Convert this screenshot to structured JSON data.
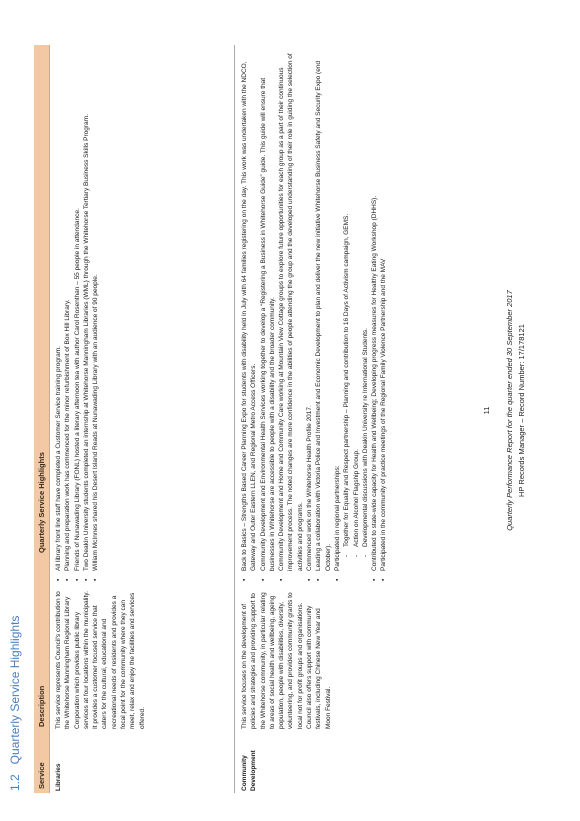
{
  "heading": {
    "number": "1.2",
    "title": "Quarterly Service Highlights"
  },
  "table": {
    "headers": {
      "service": "Service",
      "description": "Description",
      "highlights": "Quarterly Service Highlights"
    },
    "rows": [
      {
        "service": "Libraries",
        "description": "This service represents Council's contribution to the Whitehorse Manningham Regional Library Corporation which provides public library services at four locations within the municipality. It provides a customer focused service that caters for the cultural, educational and recreational needs of residents and provides a focal point for the community where they can meet, relax and enjoy the facilities and services offered.",
        "highlights": [
          {
            "text": "All library front line staff have completed a Customer Service training program.",
            "sub": false
          },
          {
            "text": "Planning and preparation work has commenced for the minor refurbishment of Box Hill Library.",
            "sub": false
          },
          {
            "text": "Friends of Nunawading Library (FONL) hosted a literary afternoon tea with author Carol Rosenthan – 55 people in attendance.",
            "sub": false
          },
          {
            "text": "Two Deakin University students completed an internship at Whitehorse Manningham Libraries (WML) through the Whitehorse Tertiary Business Skills Program.",
            "sub": false
          },
          {
            "text": "William McInnes shared his Desert Island Reads at Nunawading Library with an audience of 90 people.",
            "sub": false
          }
        ]
      },
      {
        "service": "Community Development",
        "description": "This service focuses on the development of policies and strategies and providing support to the Whitehorse community, in particular relating to areas of social health and wellbeing, ageing population, people with disabilities, diversity, volunteering, and provides community grants to local not for profit groups and organisations. Council also offers support with community festivals, including Chinese New Year and Moon Festival.",
        "highlights": [
          {
            "text": "Back to Basics – Strengths Based Career Planning Expo for students with disability held in July with 64 families registering on the day. This work was undertaken with the NDCO, Gateway and Outer Eastern LLEN, and Regional Metro Access Officers.",
            "sub": false
          },
          {
            "text": "Community Development and Environmental Health Services working together to develop a “Registering a Business in Whitehorse Guide” guide. This guide will ensure that businesses in Whitehorse are accessible to people with a disability and the broader community.",
            "sub": false
          },
          {
            "text": "Community Development and Home and Community Care working at Mountain View Cottage groups to explore future opportunities for each group as a part of their continuous improvement process. The noted changes are more confidence in the abilities of people attending the group and the developed understanding of their role in guiding the selection of activities and programs.",
            "sub": false
          },
          {
            "text": "Commenced work on the Whitehorse Health Profile 2017.",
            "sub": false
          },
          {
            "text": "Leading a collaboration with Victoria Police and Investment and Economic Development to plan and deliver the new initiative Whitehorse Business Safety and Security Expo (end October).",
            "sub": false
          },
          {
            "text": "Participated in regional partnerships:",
            "sub": false
          },
          {
            "text": "Together for Equality and Respect partnership – Planning and contribution to 16 Days of Activism campaign, GEMS.",
            "sub": true,
            "marker": "-"
          },
          {
            "text": "Action on Alcohol Flagship Group.",
            "sub": true,
            "marker": "-"
          },
          {
            "text": "Developmental discussions with Deakin University re International Students.",
            "sub": true,
            "marker": "-"
          },
          {
            "text": "Contributed to state-wide capacity for Health and Wellbeing; Developing progress measures for Healthy Eating Workshop (DHHS).",
            "sub": false
          },
          {
            "text": "Participated in the community of practice meetings of the Regional Family Violence Partnership and the MAV",
            "sub": false
          }
        ]
      }
    ]
  },
  "footer": {
    "page_number": "11",
    "report_title": "Quarterly Performance Report for the quarter ended 30 September 2017",
    "records": "HP Records Manager – Record Number: 17/178121"
  }
}
